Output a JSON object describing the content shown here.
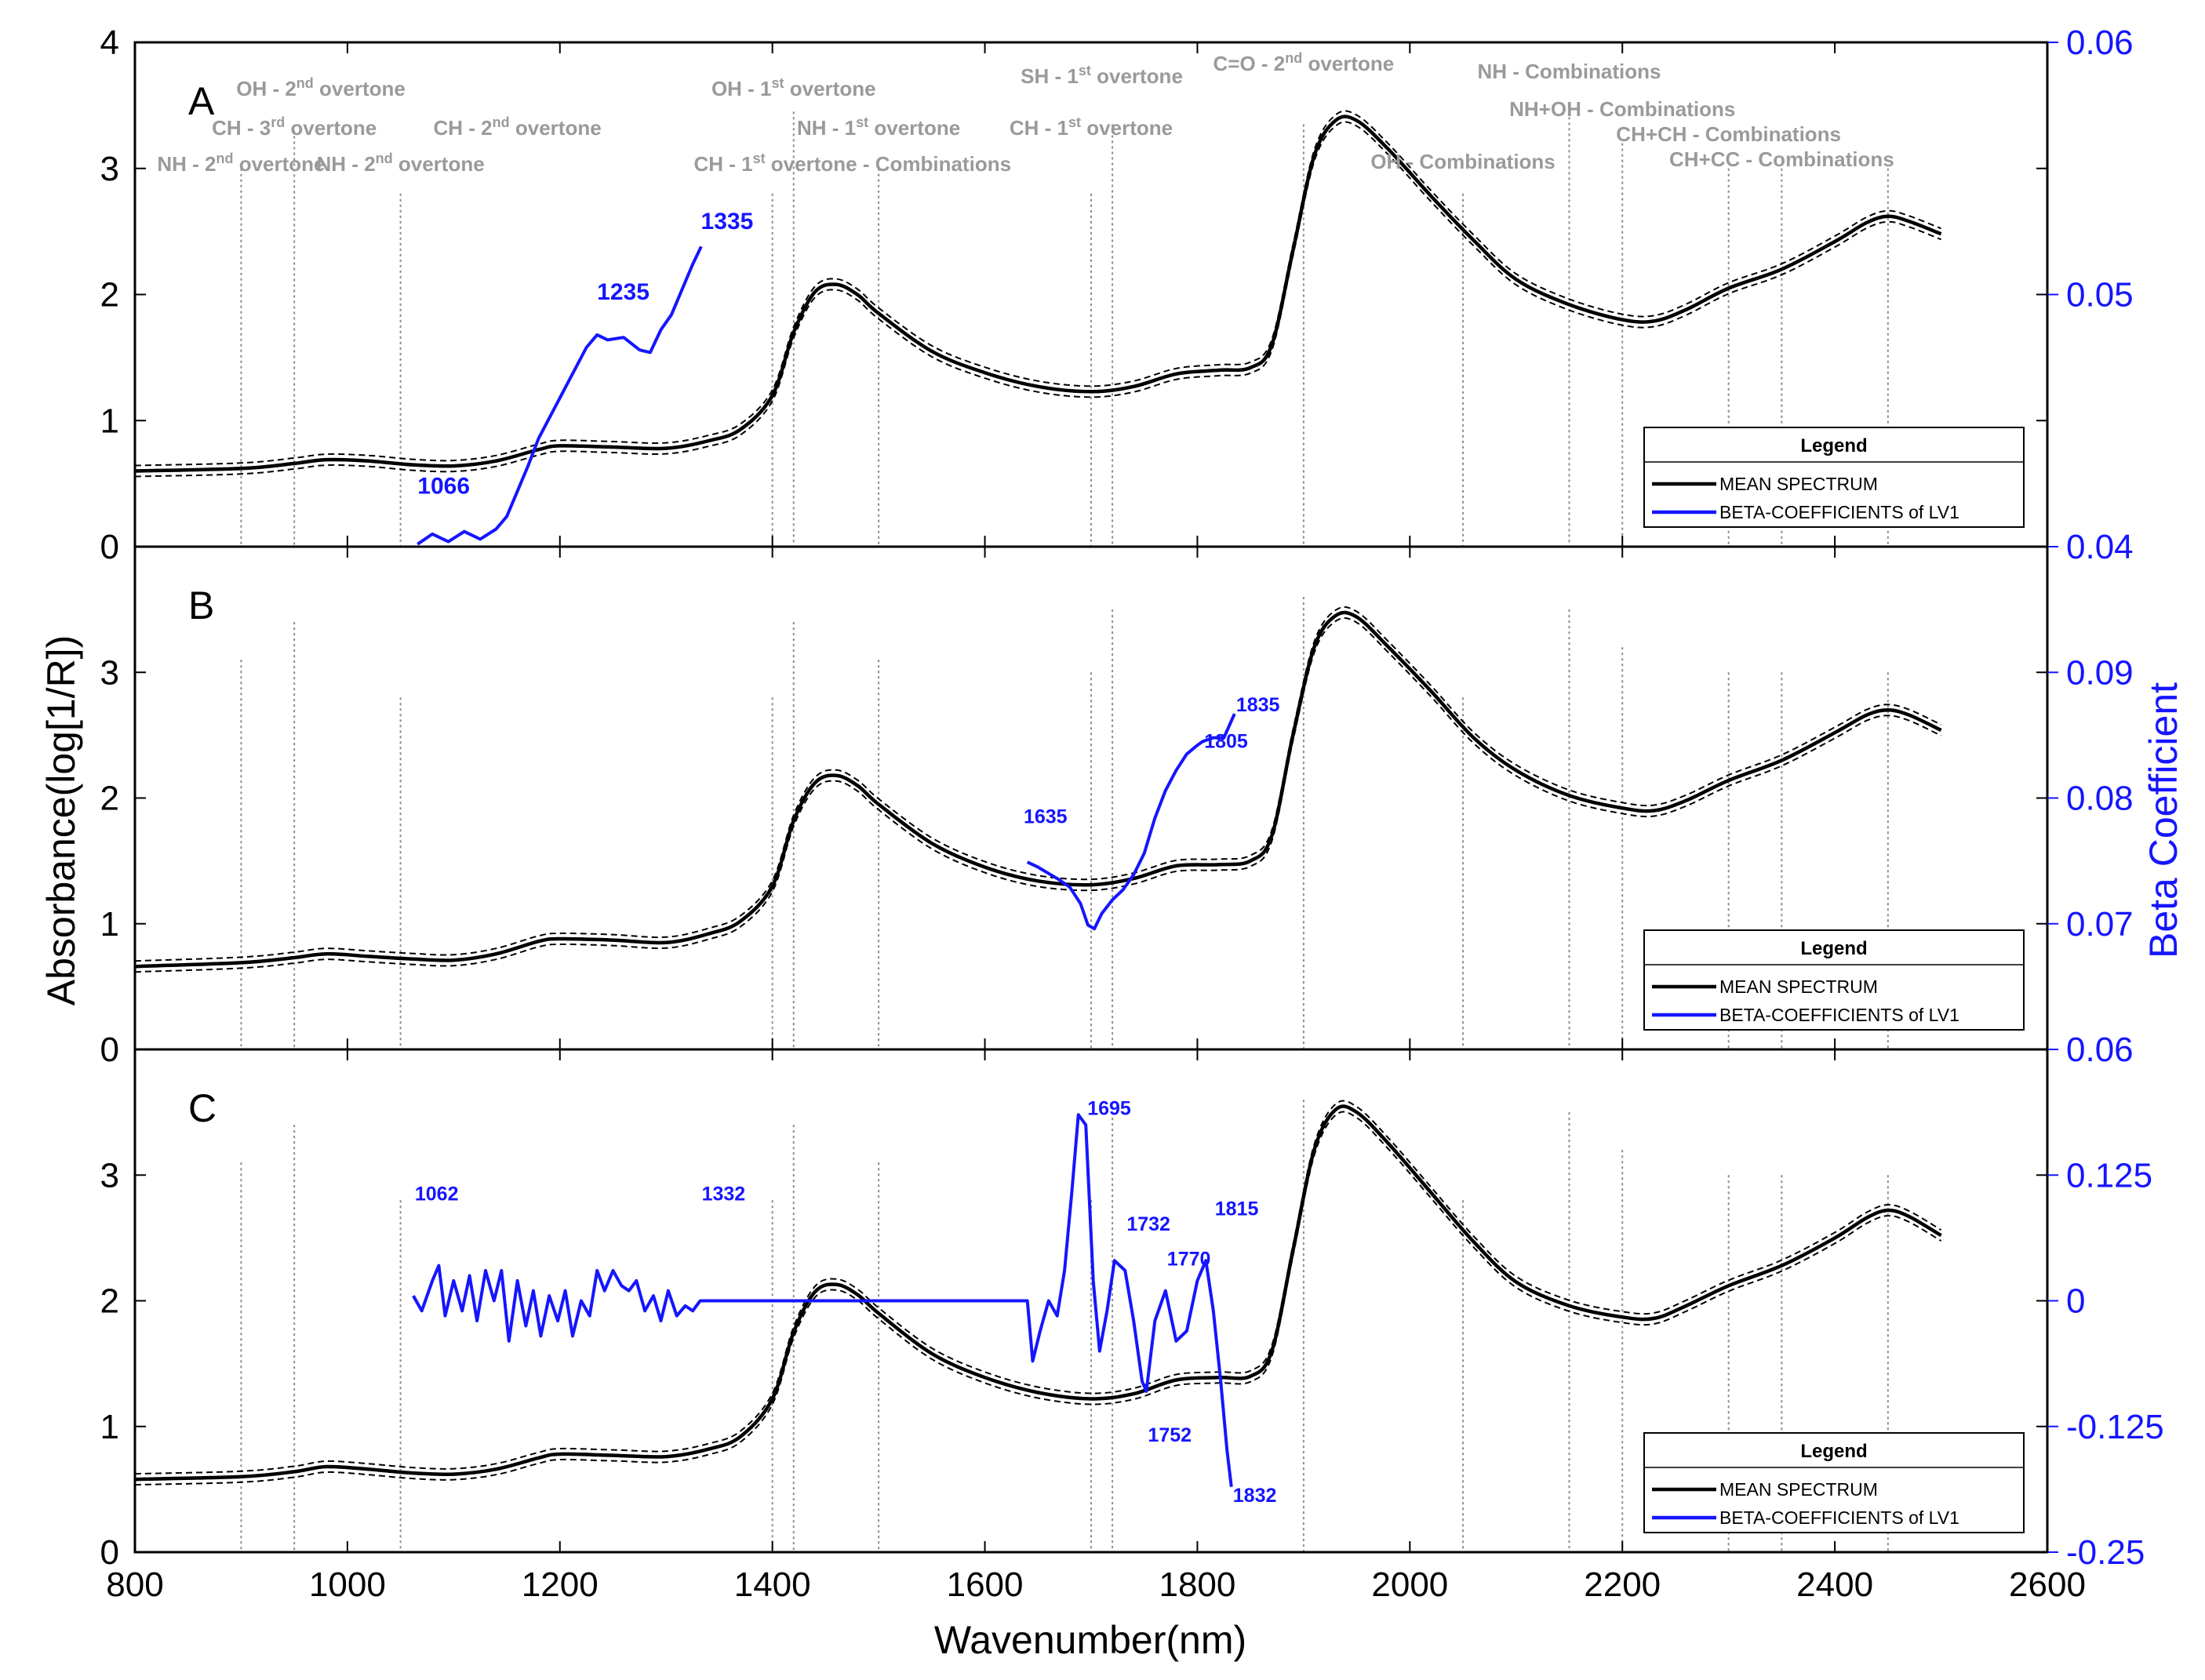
{
  "chart_data": {
    "type": "line",
    "xlabel": "Wavenumber(nm)",
    "ylabel": "Absorbance(log[1/R])",
    "ylabel_right": "Beta Coefficient",
    "xlim": [
      800,
      2600
    ],
    "xticks": [
      "800",
      "1000",
      "1200",
      "1400",
      "1600",
      "1800",
      "2000",
      "2200",
      "2400",
      "2600"
    ],
    "legend": {
      "title": "Legend",
      "items": [
        "MEAN SPECTRUM",
        "BETA-COEFFICIENTS of LV1"
      ],
      "colors": [
        "#000000",
        "#1515ff"
      ]
    },
    "mean_spectrum_x": [
      800,
      900,
      950,
      980,
      1020,
      1060,
      1100,
      1140,
      1180,
      1200,
      1250,
      1300,
      1340,
      1370,
      1400,
      1420,
      1440,
      1460,
      1480,
      1500,
      1550,
      1600,
      1650,
      1700,
      1740,
      1780,
      1820,
      1850,
      1870,
      1890,
      1910,
      1930,
      1950,
      1980,
      2020,
      2060,
      2100,
      2150,
      2200,
      2230,
      2260,
      2300,
      2350,
      2400,
      2430,
      2450,
      2470,
      2500
    ],
    "panels": [
      {
        "letter": "A",
        "ylim": [
          0,
          4
        ],
        "yticks": [
          "0",
          "1",
          "2",
          "3",
          "4"
        ],
        "y2lim": [
          0.04,
          0.06
        ],
        "y2ticks": [
          "0.04",
          "0.05",
          "0.06"
        ],
        "mean_spectrum": [
          0.6,
          0.62,
          0.66,
          0.69,
          0.68,
          0.65,
          0.64,
          0.68,
          0.77,
          0.8,
          0.79,
          0.78,
          0.84,
          0.93,
          1.2,
          1.7,
          2.02,
          2.08,
          2.0,
          1.85,
          1.55,
          1.38,
          1.27,
          1.23,
          1.27,
          1.37,
          1.4,
          1.42,
          1.6,
          2.35,
          3.1,
          3.38,
          3.38,
          3.15,
          2.78,
          2.43,
          2.12,
          1.92,
          1.8,
          1.79,
          1.88,
          2.05,
          2.2,
          2.42,
          2.57,
          2.62,
          2.58,
          2.48
        ],
        "beta": {
          "x": [
            1066,
            1080,
            1095,
            1110,
            1125,
            1140,
            1150,
            1160,
            1170,
            1180,
            1195,
            1210,
            1225,
            1235,
            1245,
            1260,
            1275,
            1285,
            1295,
            1305,
            1315,
            1325,
            1333
          ],
          "y": [
            0.0401,
            0.0405,
            0.0402,
            0.0406,
            0.0403,
            0.0407,
            0.0412,
            0.0422,
            0.0432,
            0.0443,
            0.0455,
            0.0467,
            0.0479,
            0.0484,
            0.0482,
            0.0483,
            0.0478,
            0.0477,
            0.0486,
            0.0492,
            0.0502,
            0.0512,
            0.0519
          ]
        },
        "beta_labels": [
          {
            "text": "1066",
            "x": 1066,
            "y": 0.0421
          },
          {
            "text": "1235",
            "x": 1235,
            "y": 0.0498
          },
          {
            "text": "1335",
            "x": 1335,
            "y": 0.0526
          }
        ],
        "assignments": [
          {
            "text": "NH - 2nd overtone",
            "x": 900
          },
          {
            "text": "CH - 3rd overtone",
            "x": 950
          },
          {
            "text": "OH - 2nd overtone",
            "x": 975
          },
          {
            "text": "NH - 2nd overtone",
            "x": 1050
          },
          {
            "text": "CH - 2nd overtone",
            "x": 1160
          },
          {
            "text": "CH - 1st overtone - Combinations",
            "x": 1420
          },
          {
            "text": "OH - 1st overtone",
            "x": 1420
          },
          {
            "text": "NH - 1st overtone",
            "x": 1500
          },
          {
            "text": "SH - 1st overtone",
            "x": 1710
          },
          {
            "text": "CH - 1st overtone",
            "x": 1700
          },
          {
            "text": "C=O - 2nd overtone",
            "x": 1900
          },
          {
            "text": "OH - Combinations",
            "x": 2050
          },
          {
            "text": "NH - Combinations",
            "x": 2150
          },
          {
            "text": "NH+OH - Combinations",
            "x": 2200
          },
          {
            "text": "CH+CH - Combinations",
            "x": 2300
          },
          {
            "text": "CH+CC - Combinations",
            "x": 2350
          }
        ]
      },
      {
        "letter": "B",
        "ylim": [
          0,
          4
        ],
        "yticks": [
          "0",
          "1",
          "2",
          "3"
        ],
        "y2lim": [
          0.06,
          0.1
        ],
        "y2ticks": [
          "0.06",
          "0.07",
          "0.08",
          "0.09"
        ],
        "mean_spectrum": [
          0.66,
          0.69,
          0.73,
          0.76,
          0.74,
          0.72,
          0.71,
          0.76,
          0.86,
          0.88,
          0.87,
          0.85,
          0.92,
          1.02,
          1.3,
          1.82,
          2.12,
          2.18,
          2.1,
          1.95,
          1.64,
          1.45,
          1.34,
          1.31,
          1.36,
          1.46,
          1.47,
          1.5,
          1.7,
          2.5,
          3.2,
          3.45,
          3.44,
          3.2,
          2.85,
          2.48,
          2.22,
          2.02,
          1.92,
          1.9,
          1.98,
          2.14,
          2.3,
          2.52,
          2.66,
          2.7,
          2.66,
          2.54
        ],
        "beta": {
          "x": [
            1640,
            1650,
            1660,
            1670,
            1680,
            1690,
            1697,
            1703,
            1710,
            1720,
            1730,
            1740,
            1750,
            1760,
            1770,
            1780,
            1790,
            1800,
            1805,
            1815,
            1825,
            1835
          ],
          "y": [
            0.0749,
            0.0745,
            0.074,
            0.0735,
            0.0729,
            0.0716,
            0.0699,
            0.0696,
            0.0708,
            0.0719,
            0.0727,
            0.0739,
            0.0756,
            0.0784,
            0.0806,
            0.0822,
            0.0835,
            0.0842,
            0.0845,
            0.0848,
            0.0848,
            0.0867
          ]
        },
        "beta_labels": [
          {
            "text": "1635",
            "x": 1635,
            "y": 0.078
          },
          {
            "text": "1805",
            "x": 1805,
            "y": 0.084
          },
          {
            "text": "1835",
            "x": 1835,
            "y": 0.0869
          }
        ],
        "assignments": []
      },
      {
        "letter": "C",
        "ylim": [
          0,
          4
        ],
        "yticks": [
          "0",
          "1",
          "2",
          "3"
        ],
        "y2lim": [
          -0.25,
          0.25
        ],
        "y2ticks": [
          "-0.25",
          "-0.125",
          "0",
          "0.125"
        ],
        "mean_spectrum": [
          0.58,
          0.6,
          0.64,
          0.68,
          0.66,
          0.63,
          0.62,
          0.66,
          0.75,
          0.78,
          0.77,
          0.76,
          0.82,
          0.92,
          1.22,
          1.75,
          2.07,
          2.13,
          2.05,
          1.9,
          1.58,
          1.39,
          1.27,
          1.22,
          1.26,
          1.37,
          1.39,
          1.4,
          1.6,
          2.4,
          3.2,
          3.52,
          3.5,
          3.25,
          2.86,
          2.47,
          2.15,
          1.96,
          1.87,
          1.86,
          1.96,
          2.12,
          2.28,
          2.5,
          2.66,
          2.72,
          2.67,
          2.52
        ],
        "beta": {
          "x": [
            1062,
            1070,
            1080,
            1086,
            1092,
            1100,
            1108,
            1115,
            1122,
            1130,
            1138,
            1145,
            1152,
            1160,
            1168,
            1175,
            1182,
            1190,
            1198,
            1205,
            1212,
            1220,
            1228,
            1235,
            1242,
            1250,
            1258,
            1265,
            1272,
            1280,
            1288,
            1295,
            1302,
            1310,
            1318,
            1325,
            1332,
            1640,
            1645,
            1652,
            1660,
            1668,
            1675,
            1682,
            1688,
            1695,
            1702,
            1708,
            1715,
            1722,
            1732,
            1740,
            1748,
            1752,
            1760,
            1770,
            1780,
            1790,
            1800,
            1808,
            1815,
            1822,
            1828,
            1832
          ],
          "y": [
            0.005,
            -0.01,
            0.02,
            0.035,
            -0.015,
            0.02,
            -0.01,
            0.025,
            -0.02,
            0.03,
            0.0,
            0.03,
            -0.04,
            0.02,
            -0.025,
            0.01,
            -0.035,
            0.005,
            -0.02,
            0.01,
            -0.035,
            0.0,
            -0.015,
            0.03,
            0.01,
            0.03,
            0.015,
            0.01,
            0.02,
            -0.01,
            0.005,
            -0.02,
            0.01,
            -0.015,
            -0.005,
            -0.01,
            0.0,
            0.0,
            -0.06,
            -0.03,
            0.0,
            -0.015,
            0.03,
            0.11,
            0.185,
            0.175,
            0.02,
            -0.05,
            -0.01,
            0.04,
            0.03,
            -0.02,
            -0.08,
            -0.09,
            -0.02,
            0.01,
            -0.04,
            -0.03,
            0.02,
            0.04,
            -0.01,
            -0.08,
            -0.15,
            -0.185
          ],
          "flat_segment": [
            [
              1332,
              0.0
            ],
            [
              1640,
              0.0
            ]
          ]
        },
        "beta_labels": [
          {
            "text": "1062",
            "x": 1062,
            "y": 0.1
          },
          {
            "text": "1332",
            "x": 1332,
            "y": 0.1
          },
          {
            "text": "1695",
            "x": 1695,
            "y": 0.185
          },
          {
            "text": "1732",
            "x": 1732,
            "y": 0.07
          },
          {
            "text": "1770",
            "x": 1770,
            "y": 0.035
          },
          {
            "text": "1815",
            "x": 1815,
            "y": 0.085
          },
          {
            "text": "1752",
            "x": 1752,
            "y": -0.14
          },
          {
            "text": "1832",
            "x": 1832,
            "y": -0.2
          }
        ],
        "assignments": []
      }
    ],
    "reference_lines": [
      {
        "x": 900,
        "top": [
          3.0,
          3.1,
          3.1
        ]
      },
      {
        "x": 950,
        "top": [
          3.3,
          3.4,
          3.4
        ]
      },
      {
        "x": 1050,
        "top": [
          2.8,
          2.8,
          2.8
        ]
      },
      {
        "x": 1400,
        "top": [
          2.8,
          2.8,
          2.8
        ]
      },
      {
        "x": 1420,
        "top": [
          3.45,
          3.4,
          3.4
        ]
      },
      {
        "x": 1500,
        "top": [
          3.0,
          3.1,
          3.1
        ]
      },
      {
        "x": 1700,
        "top": [
          2.8,
          3.0,
          2.8
        ]
      },
      {
        "x": 1720,
        "top": [
          3.35,
          3.5,
          3.5
        ]
      },
      {
        "x": 1900,
        "top": [
          3.35,
          3.6,
          3.6
        ]
      },
      {
        "x": 2050,
        "top": [
          2.8,
          2.8,
          2.8
        ]
      },
      {
        "x": 2150,
        "top": [
          3.45,
          3.5,
          3.5
        ]
      },
      {
        "x": 2200,
        "top": [
          3.2,
          3.2,
          3.2
        ]
      },
      {
        "x": 2300,
        "top": [
          3.0,
          3.0,
          3.0
        ]
      },
      {
        "x": 2350,
        "top": [
          3.0,
          3.0,
          3.0
        ]
      },
      {
        "x": 2450,
        "top": [
          3.0,
          3.0,
          3.0
        ]
      }
    ]
  }
}
